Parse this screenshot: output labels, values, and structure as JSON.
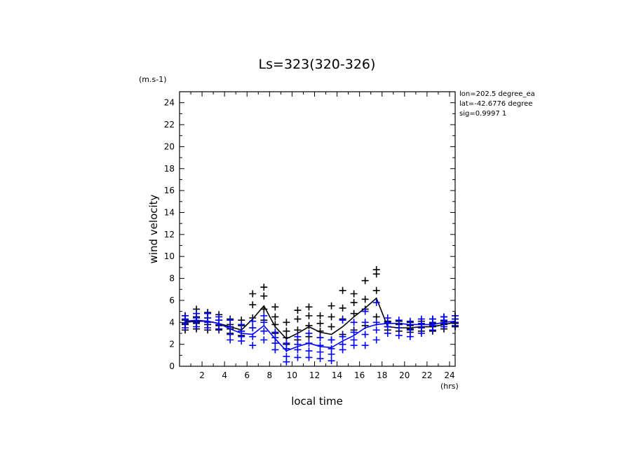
{
  "chart_data": {
    "type": "line",
    "title": "Ls=323(320-326)",
    "xlabel": "local time",
    "ylabel": "wind velocity",
    "x_unit": "(hrs)",
    "y_unit": "(m.s-1)",
    "xlim": [
      0,
      24.5
    ],
    "ylim": [
      0,
      25
    ],
    "x_ticks": [
      2,
      4,
      6,
      8,
      10,
      12,
      14,
      16,
      18,
      20,
      22,
      24
    ],
    "y_ticks": [
      0,
      2,
      4,
      6,
      8,
      10,
      12,
      14,
      16,
      18,
      20,
      22,
      24
    ],
    "info_lines": [
      "lon=202.5 degree_ea",
      "lat=-42.6776 degree",
      "sig=0.9997 1"
    ],
    "grid": false,
    "series": [
      {
        "color": "#000000",
        "x": [
          0.5,
          1.5,
          2.5,
          3.5,
          4.5,
          5.5,
          6.5,
          7.5,
          8.5,
          9.5,
          10.5,
          11.5,
          12.5,
          13.5,
          14.5,
          15.5,
          16.5,
          17.5,
          18.5,
          19.5,
          20.5,
          21.5,
          22.5,
          23.5,
          24.5
        ],
        "mean": [
          4.0,
          4.1,
          4.1,
          3.9,
          3.6,
          3.3,
          4.3,
          5.5,
          3.6,
          2.5,
          3.0,
          3.6,
          3.1,
          2.9,
          3.6,
          4.5,
          5.3,
          6.2,
          3.6,
          3.5,
          3.5,
          3.6,
          3.6,
          3.8,
          4.0
        ],
        "samples": [
          [
            3.3,
            3.8,
            4.2,
            4.6
          ],
          [
            3.4,
            3.9,
            4.5,
            5.2
          ],
          [
            3.3,
            3.8,
            4.4,
            4.9
          ],
          [
            3.3,
            3.7,
            4.2,
            4.7
          ],
          [
            3.0,
            3.4,
            3.8,
            4.3
          ],
          [
            2.8,
            3.2,
            3.7,
            4.2
          ],
          [
            3.5,
            4.4,
            5.6,
            6.6
          ],
          [
            4.2,
            5.2,
            6.4,
            7.2
          ],
          [
            3.0,
            3.8,
            4.5,
            5.4
          ],
          [
            2.0,
            2.6,
            3.2,
            4.0
          ],
          [
            2.4,
            3.3,
            4.3,
            5.1
          ],
          [
            2.7,
            3.7,
            4.6,
            5.4
          ],
          [
            2.6,
            3.2,
            3.9,
            4.6
          ],
          [
            2.4,
            3.6,
            4.5,
            5.5
          ],
          [
            2.9,
            4.3,
            5.3,
            6.9
          ],
          [
            3.3,
            4.8,
            5.8,
            6.6
          ],
          [
            3.7,
            5.2,
            6.1,
            7.8
          ],
          [
            4.5,
            6.9,
            8.4,
            8.8
          ],
          [
            3.3,
            3.6,
            3.9,
            4.1
          ],
          [
            3.2,
            3.5,
            3.8,
            4.1
          ],
          [
            3.1,
            3.4,
            3.7,
            4.0
          ],
          [
            3.2,
            3.5,
            3.8,
            4.1
          ],
          [
            3.2,
            3.6,
            3.9,
            4.3
          ],
          [
            3.4,
            3.8,
            4.1,
            4.5
          ],
          [
            3.6,
            3.9,
            4.3,
            4.6
          ]
        ]
      },
      {
        "color": "#0000ff",
        "x": [
          0.5,
          1.5,
          2.5,
          3.5,
          4.5,
          5.5,
          6.5,
          7.5,
          8.5,
          9.5,
          10.5,
          11.5,
          12.5,
          13.5,
          14.5,
          15.5,
          16.5,
          17.5,
          18.5,
          19.5,
          20.5,
          21.5,
          22.5,
          23.5,
          24.5
        ],
        "mean": [
          4.1,
          4.2,
          4.1,
          3.9,
          3.4,
          3.0,
          2.9,
          3.7,
          2.5,
          1.4,
          1.8,
          2.1,
          1.8,
          1.7,
          2.3,
          2.8,
          3.5,
          3.8,
          3.9,
          3.9,
          3.8,
          3.8,
          3.8,
          4.0,
          4.1
        ],
        "samples": [
          [
            3.5,
            3.9,
            4.3,
            4.6
          ],
          [
            3.6,
            4.0,
            4.4,
            4.8
          ],
          [
            3.5,
            4.0,
            4.4,
            4.8
          ],
          [
            3.4,
            3.8,
            4.2,
            4.5
          ],
          [
            2.4,
            2.9,
            3.6,
            4.2
          ],
          [
            2.3,
            2.7,
            3.2,
            3.8
          ],
          [
            1.9,
            2.7,
            3.5,
            4.1
          ],
          [
            2.4,
            3.2,
            4.0,
            4.6
          ],
          [
            1.5,
            2.1,
            2.6,
            3.1
          ],
          [
            0.4,
            0.9,
            1.6,
            2.1
          ],
          [
            0.8,
            1.5,
            2.0,
            2.7
          ],
          [
            0.8,
            1.4,
            2.1,
            3.0
          ],
          [
            0.7,
            1.3,
            1.9,
            2.6
          ],
          [
            0.5,
            1.1,
            1.6,
            2.4
          ],
          [
            1.5,
            2.0,
            2.7,
            4.2
          ],
          [
            1.9,
            2.4,
            3.1,
            4.0
          ],
          [
            1.9,
            2.9,
            4.0,
            5.0
          ],
          [
            2.4,
            3.3,
            4.0,
            5.8
          ],
          [
            3.0,
            3.6,
            4.0,
            4.4
          ],
          [
            2.8,
            3.5,
            3.9,
            4.2
          ],
          [
            2.7,
            3.3,
            3.8,
            4.1
          ],
          [
            3.0,
            3.5,
            3.9,
            4.3
          ],
          [
            3.3,
            3.7,
            4.0,
            4.3
          ],
          [
            3.6,
            3.9,
            4.2,
            4.5
          ],
          [
            3.7,
            4.0,
            4.3,
            4.6
          ]
        ]
      }
    ]
  }
}
